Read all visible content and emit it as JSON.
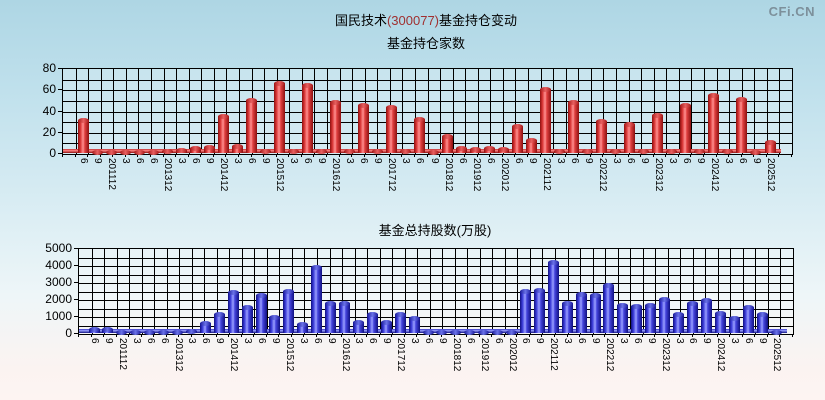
{
  "header": {
    "title_prefix": "国民技术",
    "title_code": "(300077)",
    "title_suffix": "基金持仓变动",
    "logo": "CFi.CN"
  },
  "colors": {
    "background_top": "#aed6e4",
    "background_bottom": "#fdf4f2",
    "title_text": "#000000",
    "stock_code": "#a03030",
    "logo_gray": "#7d909b",
    "gridline": "#000000",
    "red_bar_dark": "#8c1010",
    "red_bar_light": "#ff9090",
    "blue_bar_dark": "#101080",
    "blue_bar_light": "#9aa0ff"
  },
  "chart_data": [
    {
      "type": "bar",
      "title": "基金持仓家数",
      "series_color": "red",
      "xlabel": "",
      "ylabel": "",
      "ylim": [
        0,
        80
      ],
      "y_ticks": [
        0,
        20,
        40,
        60,
        80
      ],
      "minor_gridline_step": 10,
      "grid": true,
      "legend_position": "none",
      "categories": [
        "6",
        "9",
        "201112",
        "3",
        "6",
        "6",
        "201312",
        "3",
        "6",
        "9",
        "201412",
        "3",
        "6",
        "9",
        "201512",
        "3",
        "6",
        "9",
        "201612",
        "3",
        "6",
        "9",
        "201712",
        "3",
        "6",
        "9",
        "201812",
        "6",
        "201912",
        "6",
        "202012",
        "6",
        "9",
        "202112",
        "3",
        "6",
        "9",
        "202212",
        "3",
        "6",
        "9",
        "202312",
        "3",
        "6",
        "9",
        "202412",
        "3",
        "6",
        "9",
        "202512"
      ],
      "values": [
        31,
        1,
        1,
        1,
        1,
        1,
        2,
        3,
        5,
        6,
        35,
        7,
        50,
        2,
        66,
        2,
        64,
        2,
        48,
        2,
        45,
        2,
        43,
        2,
        32,
        1,
        16,
        5,
        4,
        5,
        4,
        25,
        12,
        60,
        2,
        48,
        2,
        30,
        2,
        27,
        2,
        36,
        2,
        45,
        2,
        55,
        2,
        51,
        1,
        10
      ]
    },
    {
      "type": "bar",
      "title": "基金总持股数(万股)",
      "series_color": "blue",
      "xlabel": "",
      "ylabel": "",
      "ylim": [
        0,
        5000
      ],
      "y_ticks": [
        0,
        1000,
        2000,
        3000,
        4000,
        5000
      ],
      "minor_gridline_step": 500,
      "grid": true,
      "legend_position": "none",
      "categories": [
        "6",
        "9",
        "201112",
        "3",
        "6",
        "6",
        "201312",
        "3",
        "6",
        "9",
        "201412",
        "3",
        "6",
        "9",
        "201512",
        "3",
        "6",
        "9",
        "201612",
        "3",
        "6",
        "9",
        "201712",
        "3",
        "6",
        "9",
        "201812",
        "6",
        "201912",
        "6",
        "202012",
        "6",
        "9",
        "202112",
        "3",
        "6",
        "9",
        "202212",
        "3",
        "6",
        "9",
        "202312",
        "3",
        "6",
        "9",
        "202412",
        "3",
        "6",
        "9",
        "202512"
      ],
      "values": [
        250,
        230,
        30,
        20,
        20,
        20,
        80,
        140,
        590,
        1140,
        2400,
        1520,
        2250,
        920,
        2450,
        530,
        3880,
        1790,
        1790,
        650,
        1130,
        650,
        1120,
        880,
        50,
        30,
        60,
        30,
        30,
        30,
        40,
        2500,
        2550,
        4150,
        1750,
        2300,
        2250,
        2850,
        1650,
        1600,
        1630,
        2000,
        1120,
        1780,
        1950,
        1200,
        860,
        1550,
        1120,
        80
      ]
    }
  ]
}
